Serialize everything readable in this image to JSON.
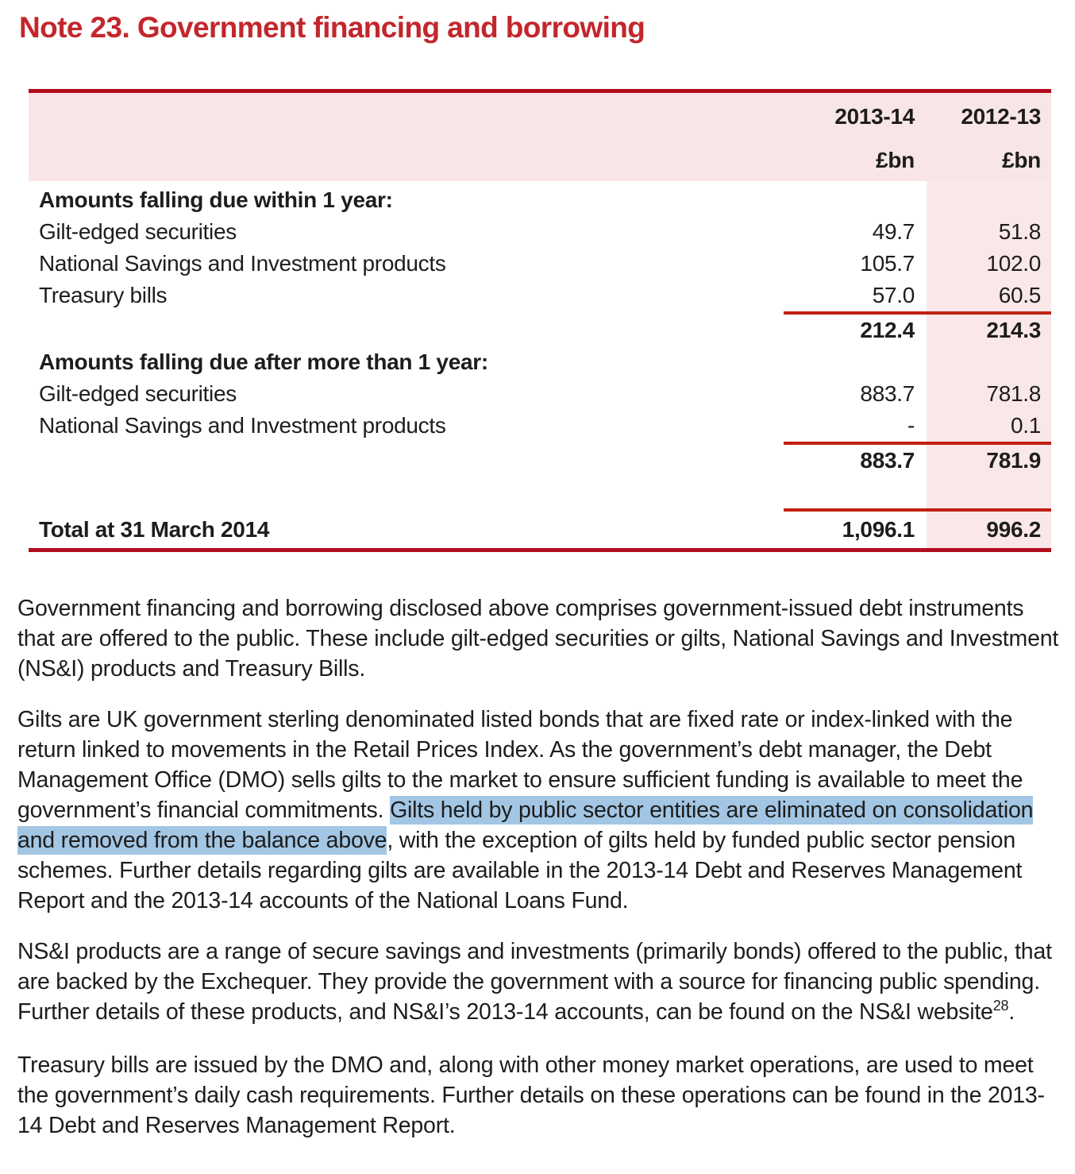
{
  "page": {
    "title": "Note 23. Government financing and borrowing"
  },
  "colors": {
    "title_red": "#c3262c",
    "table_border_red": "#b10d1e",
    "subtotal_rule_red": "#c02113",
    "header_pink": "#f8e5e7",
    "column_pink": "#f9e7e9",
    "highlight_blue": "#a3c6e4",
    "text": "#1d1d1b"
  },
  "table": {
    "col_headers": [
      {
        "year": "2013-14",
        "unit": "£bn"
      },
      {
        "year": "2012-13",
        "unit": "£bn"
      }
    ],
    "sections": [
      {
        "heading": "Amounts falling due within 1 year:",
        "rows": [
          {
            "label": "Gilt-edged securities",
            "v1": "49.7",
            "v2": "51.8"
          },
          {
            "label": "National Savings and Investment products",
            "v1": "105.7",
            "v2": "102.0"
          },
          {
            "label": "Treasury bills",
            "v1": "57.0",
            "v2": "60.5"
          }
        ],
        "subtotal": {
          "v1": "212.4",
          "v2": "214.3"
        }
      },
      {
        "heading": "Amounts falling due after more than 1 year:",
        "rows": [
          {
            "label": "Gilt-edged securities",
            "v1": "883.7",
            "v2": "781.8"
          },
          {
            "label": "National Savings and Investment products",
            "v1": "-",
            "v2": "0.1"
          }
        ],
        "subtotal": {
          "v1": "883.7",
          "v2": "781.9"
        }
      }
    ],
    "total": {
      "label": "Total at 31 March 2014",
      "v1": "1,096.1",
      "v2": "996.2"
    }
  },
  "paragraphs": {
    "p1": "Government financing and borrowing disclosed above comprises government-issued debt instruments that are offered to the public. These include gilt-edged securities or gilts, National Savings and Investment (NS&I) products and Treasury Bills.",
    "p2_pre": "Gilts are UK government sterling denominated listed bonds that are fixed rate or index-linked with the return linked to movements in the Retail Prices Index. As the government’s debt manager, the Debt Management Office (DMO) sells gilts to the market to ensure sufficient funding is available to meet the government’s financial commitments. ",
    "p2_highlight": "Gilts held by public sector entities are eliminated on consolidation and removed from the balance above",
    "p2_post": ", with the exception of gilts held by funded public sector pension schemes. Further details regarding gilts are available in the 2013-14 Debt and Reserves Management Report and the 2013-14 accounts of the National Loans Fund.",
    "p3_pre": "NS&I products are a range of secure savings and investments (primarily bonds) offered to the public, that are backed by the Exchequer. They provide the government with a source for financing public spending. Further details of these products, and NS&I’s 2013-14 accounts, can be found on the NS&I website",
    "p3_footnote": "28",
    "p3_post": ".",
    "p4": "Treasury bills are issued by the DMO and, along with other money market operations, are used to meet the government’s daily cash requirements. Further details on these operations can be found in the 2013-14 Debt and Reserves Management Report."
  }
}
